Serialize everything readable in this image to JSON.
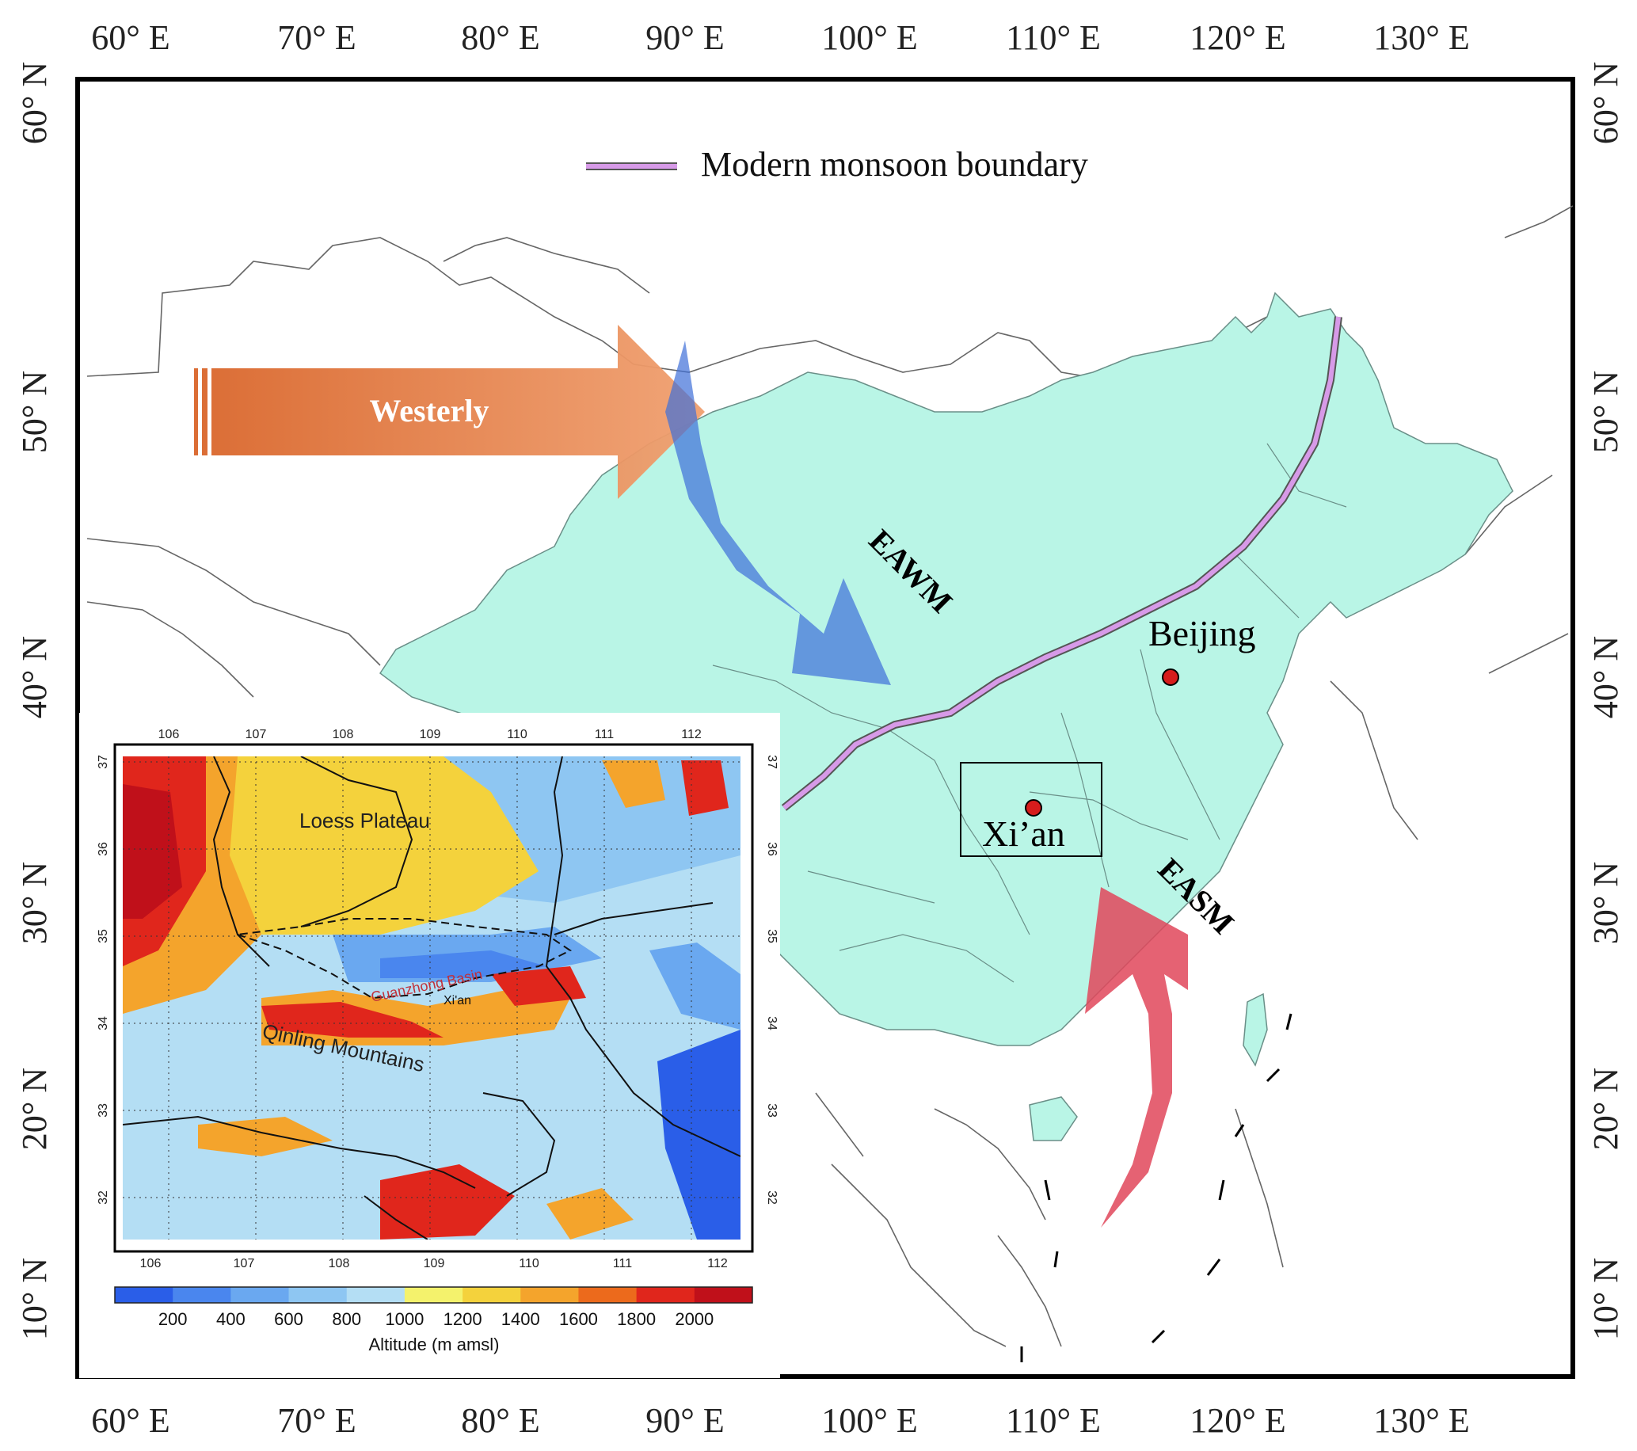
{
  "figure": {
    "lon_labels": [
      "60° E",
      "70° E",
      "80° E",
      "90° E",
      "100° E",
      "110° E",
      "120° E",
      "130° E"
    ],
    "lat_labels": [
      "60° N",
      "50° N",
      "40° N",
      "30° N",
      "20° N",
      "10° N"
    ],
    "legend_label": "Modern monsoon boundary",
    "arrows": {
      "westerly": "Westerly",
      "winter": "EAWM",
      "summer": "EASM"
    },
    "cities": {
      "beijing": "Beijing",
      "xian": "Xi’an"
    },
    "colors": {
      "china_fill": "#b9f5e6",
      "monsoon_line": "#d79ae8",
      "westerly": "#e8783a",
      "eawm": "#3f6fd8",
      "easm": "#e0465a"
    }
  },
  "inset": {
    "top_lon_ticks": [
      "106",
      "107",
      "108",
      "109",
      "110",
      "111",
      "112"
    ],
    "bottom_lon_ticks": [
      "106",
      "107",
      "108",
      "109",
      "110",
      "111",
      "112"
    ],
    "lat_ticks": [
      "37",
      "36",
      "35",
      "34",
      "33",
      "32"
    ],
    "labels": {
      "loess": "Loess Plateau",
      "basin": "Guanzhong Basin",
      "xian": "Xi'an",
      "qinling": "Qinling Mountains"
    },
    "colorbar_ticks": [
      "200",
      "400",
      "600",
      "800",
      "1000",
      "1200",
      "1400",
      "1600",
      "1800",
      "2000"
    ],
    "colorbar_title": "Altitude (m amsl)",
    "colorbar_colors": [
      "#2a5ee8",
      "#4a86ee",
      "#6aa8f0",
      "#8ec6f2",
      "#b4def4",
      "#f4f26c",
      "#f4d23c",
      "#f4a42c",
      "#ec6a1c",
      "#e0261c",
      "#c0101a"
    ]
  }
}
